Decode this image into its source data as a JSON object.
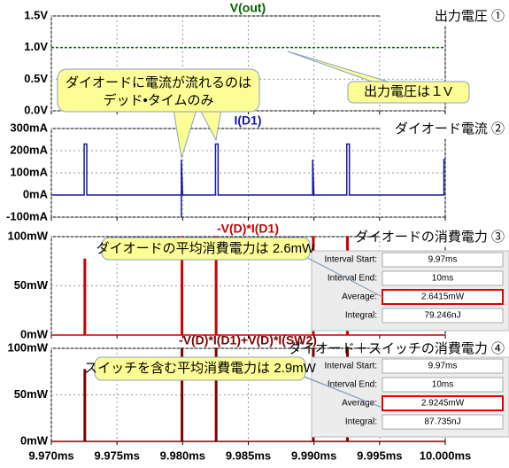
{
  "chart_data": [
    {
      "type": "line",
      "panel_label": "出力電圧 ①",
      "line_style": "dashed",
      "x": [
        9.97,
        10.0
      ],
      "series": [
        {
          "name": "V(out)",
          "color": "#006400",
          "values": [
            1.0,
            1.0
          ]
        }
      ],
      "xlim": [
        9.97,
        10.0
      ],
      "xticks": [
        9.97,
        9.975,
        9.98,
        9.985,
        9.99,
        9.995,
        10.0
      ],
      "ylim": [
        0,
        1.5
      ],
      "yticks": [
        {
          "value": 1.5,
          "label": "1.5V"
        },
        {
          "value": 1.0,
          "label": "1.0V"
        },
        {
          "value": 0.5,
          "label": "0.5V"
        },
        {
          "value": 0.0,
          "label": "0.0V"
        }
      ],
      "grid": true,
      "callout": {
        "lines": [
          "出力電圧は１V"
        ]
      }
    },
    {
      "type": "line",
      "panel_label": "ダイオード電流 ②",
      "x": [
        9.97,
        9.9725,
        9.9725,
        9.9727,
        9.9727,
        9.9799,
        9.9799,
        9.9799,
        9.98,
        9.9825,
        9.9825,
        9.9827,
        9.9827,
        9.9899,
        9.9899,
        9.99,
        9.9925,
        9.9925,
        9.9927,
        9.9927,
        9.9999,
        9.9999,
        10.0
      ],
      "series": [
        {
          "name": "I(D1)",
          "color": "#1a1a9c",
          "values": [
            0,
            0,
            230,
            230,
            0,
            0,
            -100,
            160,
            0,
            0,
            230,
            230,
            0,
            0,
            160,
            0,
            0,
            230,
            230,
            0,
            0,
            160,
            160
          ]
        }
      ],
      "xlim": [
        9.97,
        10.0
      ],
      "xticks": [
        9.97,
        9.975,
        9.98,
        9.985,
        9.99,
        9.995,
        10.0
      ],
      "ylim": [
        -100,
        300
      ],
      "yticks": [
        {
          "value": 300,
          "label": "300mA"
        },
        {
          "value": 200,
          "label": "200mA"
        },
        {
          "value": 100,
          "label": "100mA"
        },
        {
          "value": 0,
          "label": "0mA"
        },
        {
          "value": -100,
          "label": "-100mA"
        }
      ],
      "grid": true,
      "callout": {
        "lines": [
          "ダイオードに電流が流れるのは",
          "デッド•タイムのみ"
        ]
      }
    },
    {
      "type": "line",
      "panel_label": "ダイオードの消費電力 ③",
      "x": [
        9.97,
        9.9725,
        9.9725,
        9.9726,
        9.9726,
        9.9799,
        9.9799,
        9.98,
        9.98,
        9.9825,
        9.9825,
        9.9826,
        9.9826,
        9.9899,
        9.9899,
        9.99,
        9.99,
        9.9925,
        9.9925,
        9.9926,
        9.9926,
        10.0
      ],
      "series": [
        {
          "name": "-V(D)*I(D1)",
          "color": "#cc0000",
          "values": [
            0,
            0,
            77,
            77,
            0,
            0,
            100,
            100,
            0,
            0,
            100,
            100,
            0,
            0,
            100,
            100,
            0,
            0,
            100,
            100,
            0,
            0
          ]
        }
      ],
      "xlim": [
        9.97,
        10.0
      ],
      "xticks": [
        9.97,
        9.975,
        9.98,
        9.985,
        9.99,
        9.995,
        10.0
      ],
      "ylim": [
        0,
        100
      ],
      "yticks": [
        {
          "value": 100,
          "label": "100mW"
        },
        {
          "value": 50,
          "label": "50mW"
        },
        {
          "value": 0,
          "label": "0mW"
        }
      ],
      "grid": true,
      "callout": {
        "lines": [
          "ダイオードの平均消費電力は 2.6mW"
        ]
      },
      "measurements": [
        {
          "label": "Interval Start:",
          "value": "9.97ms"
        },
        {
          "label": "Interval End:",
          "value": "10ms"
        },
        {
          "label": "Average:",
          "value": "2.6415mW"
        },
        {
          "label": "Integral:",
          "value": "79.246nJ"
        }
      ]
    },
    {
      "type": "line",
      "panel_label": "ダイオード＋スイッチの消費電力 ④",
      "x": [
        9.97,
        9.9725,
        9.9725,
        9.9726,
        9.9726,
        9.9799,
        9.9799,
        9.98,
        9.98,
        9.9825,
        9.9825,
        9.9826,
        9.9826,
        9.9899,
        9.9899,
        9.99,
        9.99,
        9.9925,
        9.9925,
        9.9926,
        9.9926,
        10.0
      ],
      "series": [
        {
          "name": "-V(D)*I(D1)+V(D)*I(SW2)",
          "color": "#800000",
          "values": [
            0,
            0,
            77,
            77,
            0,
            0,
            100,
            100,
            0,
            0,
            100,
            100,
            0,
            0,
            100,
            100,
            0,
            0,
            100,
            100,
            0,
            0
          ]
        }
      ],
      "xlim": [
        9.97,
        10.0
      ],
      "xticks": [
        {
          "value": 9.97,
          "label": "9.970ms"
        },
        {
          "value": 9.975,
          "label": "9.975ms"
        },
        {
          "value": 9.98,
          "label": "9.980ms"
        },
        {
          "value": 9.985,
          "label": "9.985ms"
        },
        {
          "value": 9.99,
          "label": "9.990ms"
        },
        {
          "value": 9.995,
          "label": "9.995ms"
        },
        {
          "value": 10.0,
          "label": "10.000ms"
        }
      ],
      "ylim": [
        0,
        100
      ],
      "yticks": [
        {
          "value": 100,
          "label": "100mW"
        },
        {
          "value": 50,
          "label": "50mW"
        },
        {
          "value": 0,
          "label": "0mW"
        }
      ],
      "grid": true,
      "callout": {
        "lines": [
          "スイッチを含む平均消費電力は 2.9mW"
        ]
      },
      "measurements": [
        {
          "label": "Interval Start:",
          "value": "9.97ms"
        },
        {
          "label": "Interval End:",
          "value": "10ms"
        },
        {
          "label": "Average:",
          "value": "2.9245mW"
        },
        {
          "label": "Integral:",
          "value": "87.735nJ"
        }
      ]
    }
  ]
}
